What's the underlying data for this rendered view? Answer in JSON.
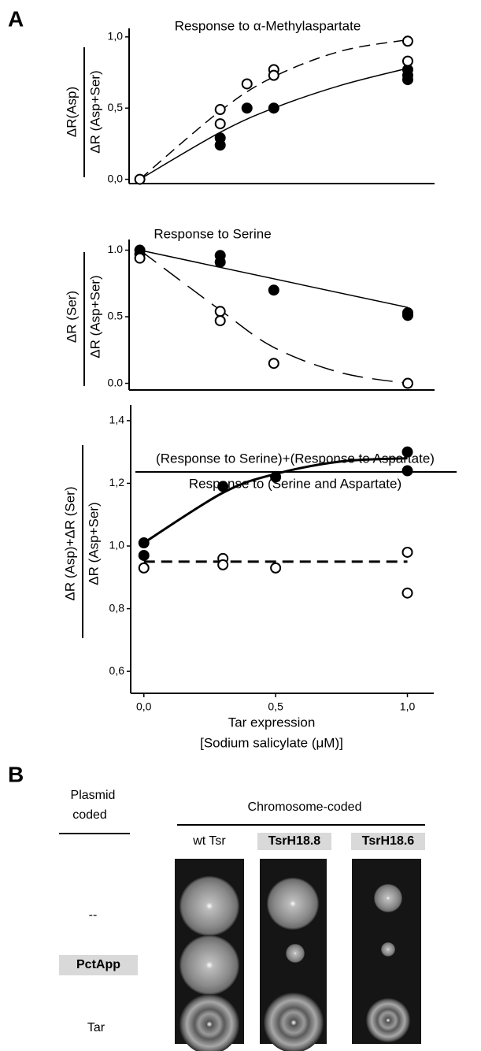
{
  "panel_a": {
    "label": "A"
  },
  "chart_data": [
    {
      "type": "scatter",
      "title": "Response to α-Methylaspartate",
      "ylabel": [
        "ΔR(Asp)",
        "ΔR (Asp+Ser)"
      ],
      "xlim": [
        -0.04,
        1.1
      ],
      "ylim": [
        -0.03,
        1.06
      ],
      "yticks": [
        {
          "value": 0,
          "label": "0,0"
        },
        {
          "value": 0.5,
          "label": "0,5"
        },
        {
          "value": 1,
          "label": "1,0"
        }
      ],
      "series": [
        {
          "type": "scatter",
          "marker": "filled",
          "color": "#000000",
          "x": [
            0.3,
            0.3,
            0.4,
            0.5,
            1.0,
            1.0,
            1.0
          ],
          "values": [
            0.29,
            0.24,
            0.5,
            0.5,
            0.77,
            0.73,
            0.7
          ]
        },
        {
          "type": "scatter",
          "marker": "open",
          "color": "#000000",
          "x": [
            0,
            0.3,
            0.3,
            0.4,
            0.5,
            0.5,
            1.0,
            1.0
          ],
          "values": [
            0.0,
            0.49,
            0.39,
            0.67,
            0.77,
            0.73,
            0.97,
            0.83
          ]
        },
        {
          "type": "line",
          "style": "solid",
          "color": "#000000",
          "line_width": 1.5,
          "x": [
            0,
            0.3,
            0.5,
            0.75,
            1.0
          ],
          "values": [
            0.0,
            0.33,
            0.5,
            0.66,
            0.78
          ]
        },
        {
          "type": "line",
          "style": "dashed",
          "color": "#000000",
          "line_width": 1.5,
          "x": [
            0,
            0.3,
            0.5,
            0.75,
            1.0
          ],
          "values": [
            0.0,
            0.48,
            0.72,
            0.9,
            0.98
          ]
        }
      ]
    },
    {
      "type": "scatter",
      "title": "Response to Serine",
      "ylabel": [
        "ΔR (Ser)",
        "ΔR (Asp+Ser)"
      ],
      "xlim": [
        -0.04,
        1.1
      ],
      "ylim": [
        -0.05,
        1.08
      ],
      "yticks": [
        {
          "value": 0,
          "label": "0.0"
        },
        {
          "value": 0.5,
          "label": "0.5"
        },
        {
          "value": 1,
          "label": "1.0"
        }
      ],
      "series": [
        {
          "type": "scatter",
          "marker": "filled",
          "color": "#000000",
          "x": [
            0,
            0,
            0.3,
            0.3,
            0.5,
            1.0,
            1.0
          ],
          "values": [
            1.0,
            0.97,
            0.96,
            0.91,
            0.7,
            0.53,
            0.51
          ]
        },
        {
          "type": "scatter",
          "marker": "open",
          "color": "#000000",
          "x": [
            0,
            0.3,
            0.3,
            0.5,
            1.0
          ],
          "values": [
            0.94,
            0.54,
            0.47,
            0.15,
            0.0
          ]
        },
        {
          "type": "line",
          "style": "solid",
          "color": "#000000",
          "line_width": 1.5,
          "x": [
            0,
            1.0
          ],
          "values": [
            1.0,
            0.57
          ]
        },
        {
          "type": "line",
          "style": "longdash",
          "color": "#000000",
          "line_width": 1.5,
          "x": [
            0,
            0.3,
            0.5,
            0.75,
            1.0
          ],
          "values": [
            1.0,
            0.55,
            0.27,
            0.08,
            0.0
          ]
        }
      ]
    },
    {
      "type": "scatter",
      "title": [
        "(Response to Serine)+(Response to Aspartate)",
        "Response to (Serine and Aspartate)"
      ],
      "ylabel": [
        "ΔR (Asp)+ΔR (Ser)",
        "ΔR (Asp+Ser)"
      ],
      "xlabel": [
        "Tar expression",
        "[Sodium salicylate (μM)]"
      ],
      "xlim": [
        -0.05,
        1.1
      ],
      "ylim": [
        0.53,
        1.45
      ],
      "xticks": [
        {
          "value": 0,
          "label": "0,0"
        },
        {
          "value": 0.5,
          "label": "0,5"
        },
        {
          "value": 1,
          "label": "1,0"
        }
      ],
      "yticks": [
        {
          "value": 0.6,
          "label": "0,6"
        },
        {
          "value": 0.8,
          "label": "0,8"
        },
        {
          "value": 1.0,
          "label": "1,0"
        },
        {
          "value": 1.2,
          "label": "1,2"
        },
        {
          "value": 1.4,
          "label": "1,4"
        }
      ],
      "series": [
        {
          "type": "scatter",
          "marker": "filled",
          "color": "#000000",
          "x": [
            0,
            0,
            0.3,
            0.5,
            1.0,
            1.0
          ],
          "values": [
            1.01,
            0.97,
            1.19,
            1.22,
            1.3,
            1.24
          ]
        },
        {
          "type": "scatter",
          "marker": "open",
          "color": "#000000",
          "x": [
            0,
            0.3,
            0.3,
            0.5,
            1.0,
            1.0
          ],
          "values": [
            0.93,
            0.96,
            0.94,
            0.93,
            0.98,
            0.85
          ]
        },
        {
          "type": "line",
          "style": "solid",
          "color": "#000000",
          "line_width": 3,
          "x": [
            0,
            0.3,
            0.5,
            0.75,
            1.0
          ],
          "values": [
            1.01,
            1.17,
            1.23,
            1.27,
            1.28
          ]
        },
        {
          "type": "line",
          "style": "dashed",
          "color": "#000000",
          "line_width": 3,
          "x": [
            0,
            1.0
          ],
          "values": [
            0.95,
            0.95
          ]
        }
      ]
    }
  ],
  "panel_b": {
    "label": "B",
    "row_header": [
      "Plasmid",
      "coded"
    ],
    "column_header": "Chromosome-coded",
    "columns": [
      "wt Tsr",
      "TsrH18.8",
      "TsrH18.6"
    ],
    "rows": [
      "--",
      "PctApp",
      "Tar"
    ]
  }
}
